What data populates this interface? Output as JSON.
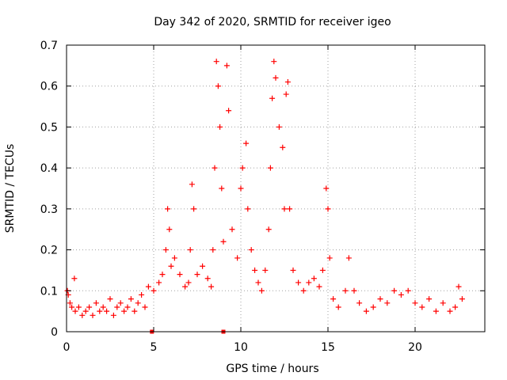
{
  "chart_data": {
    "type": "scatter",
    "title": "Day 342 of 2020, SRMTID for receiver igeo",
    "xlabel": "GPS time / hours",
    "ylabel": "SRMTID / TECUs",
    "xlim": [
      0,
      24
    ],
    "ylim": [
      0,
      0.7
    ],
    "x_ticks": [
      0,
      5,
      10,
      15,
      20
    ],
    "x_tick_labels": [
      "0",
      "5",
      "10",
      "15",
      "20"
    ],
    "y_ticks": [
      0,
      0.1,
      0.2,
      0.3,
      0.4,
      0.5,
      0.6,
      0.7
    ],
    "y_tick_labels": [
      "0",
      "0.1",
      "0.2",
      "0.3",
      "0.4",
      "0.5",
      "0.6",
      "0.7"
    ],
    "grid": true,
    "marker": "+",
    "marker_color": "#ff0000",
    "gap_markers_at": [
      4.9,
      9.0
    ],
    "series": [
      {
        "name": "SRMTID",
        "points": [
          [
            0.05,
            0.1
          ],
          [
            0.1,
            0.09
          ],
          [
            0.2,
            0.07
          ],
          [
            0.3,
            0.06
          ],
          [
            0.45,
            0.13
          ],
          [
            0.5,
            0.05
          ],
          [
            0.7,
            0.06
          ],
          [
            0.9,
            0.04
          ],
          [
            1.1,
            0.05
          ],
          [
            1.3,
            0.06
          ],
          [
            1.5,
            0.04
          ],
          [
            1.7,
            0.07
          ],
          [
            1.9,
            0.05
          ],
          [
            2.1,
            0.06
          ],
          [
            2.3,
            0.05
          ],
          [
            2.5,
            0.08
          ],
          [
            2.7,
            0.04
          ],
          [
            2.9,
            0.06
          ],
          [
            3.1,
            0.07
          ],
          [
            3.3,
            0.05
          ],
          [
            3.5,
            0.06
          ],
          [
            3.7,
            0.08
          ],
          [
            3.9,
            0.05
          ],
          [
            4.1,
            0.07
          ],
          [
            4.3,
            0.09
          ],
          [
            4.5,
            0.06
          ],
          [
            4.7,
            0.11
          ],
          [
            5.0,
            0.1
          ],
          [
            5.3,
            0.12
          ],
          [
            5.5,
            0.14
          ],
          [
            5.7,
            0.2
          ],
          [
            5.8,
            0.3
          ],
          [
            5.9,
            0.25
          ],
          [
            6.0,
            0.16
          ],
          [
            6.2,
            0.18
          ],
          [
            6.5,
            0.14
          ],
          [
            6.8,
            0.11
          ],
          [
            7.0,
            0.12
          ],
          [
            7.1,
            0.2
          ],
          [
            7.2,
            0.36
          ],
          [
            7.3,
            0.3
          ],
          [
            7.5,
            0.14
          ],
          [
            7.8,
            0.16
          ],
          [
            8.1,
            0.13
          ],
          [
            8.3,
            0.11
          ],
          [
            8.4,
            0.2
          ],
          [
            8.5,
            0.4
          ],
          [
            8.6,
            0.66
          ],
          [
            8.7,
            0.6
          ],
          [
            8.8,
            0.5
          ],
          [
            8.9,
            0.35
          ],
          [
            9.0,
            0.22
          ],
          [
            9.2,
            0.65
          ],
          [
            9.3,
            0.54
          ],
          [
            9.5,
            0.25
          ],
          [
            9.8,
            0.18
          ],
          [
            10.0,
            0.35
          ],
          [
            10.1,
            0.4
          ],
          [
            10.3,
            0.46
          ],
          [
            10.4,
            0.3
          ],
          [
            10.6,
            0.2
          ],
          [
            10.8,
            0.15
          ],
          [
            11.0,
            0.12
          ],
          [
            11.2,
            0.1
          ],
          [
            11.4,
            0.15
          ],
          [
            11.6,
            0.25
          ],
          [
            11.7,
            0.4
          ],
          [
            11.8,
            0.57
          ],
          [
            11.9,
            0.66
          ],
          [
            12.0,
            0.62
          ],
          [
            12.2,
            0.5
          ],
          [
            12.4,
            0.45
          ],
          [
            12.5,
            0.3
          ],
          [
            12.6,
            0.58
          ],
          [
            12.7,
            0.61
          ],
          [
            12.8,
            0.3
          ],
          [
            13.0,
            0.15
          ],
          [
            13.3,
            0.12
          ],
          [
            13.6,
            0.1
          ],
          [
            13.9,
            0.12
          ],
          [
            14.2,
            0.13
          ],
          [
            14.5,
            0.11
          ],
          [
            14.7,
            0.15
          ],
          [
            14.9,
            0.35
          ],
          [
            15.0,
            0.3
          ],
          [
            15.1,
            0.18
          ],
          [
            15.3,
            0.08
          ],
          [
            15.6,
            0.06
          ],
          [
            16.0,
            0.1
          ],
          [
            16.2,
            0.18
          ],
          [
            16.5,
            0.1
          ],
          [
            16.8,
            0.07
          ],
          [
            17.2,
            0.05
          ],
          [
            17.6,
            0.06
          ],
          [
            18.0,
            0.08
          ],
          [
            18.4,
            0.07
          ],
          [
            18.8,
            0.1
          ],
          [
            19.2,
            0.09
          ],
          [
            19.6,
            0.1
          ],
          [
            20.0,
            0.07
          ],
          [
            20.4,
            0.06
          ],
          [
            20.8,
            0.08
          ],
          [
            21.2,
            0.05
          ],
          [
            21.6,
            0.07
          ],
          [
            22.0,
            0.05
          ],
          [
            22.3,
            0.06
          ],
          [
            22.5,
            0.11
          ],
          [
            22.7,
            0.08
          ]
        ]
      }
    ]
  }
}
